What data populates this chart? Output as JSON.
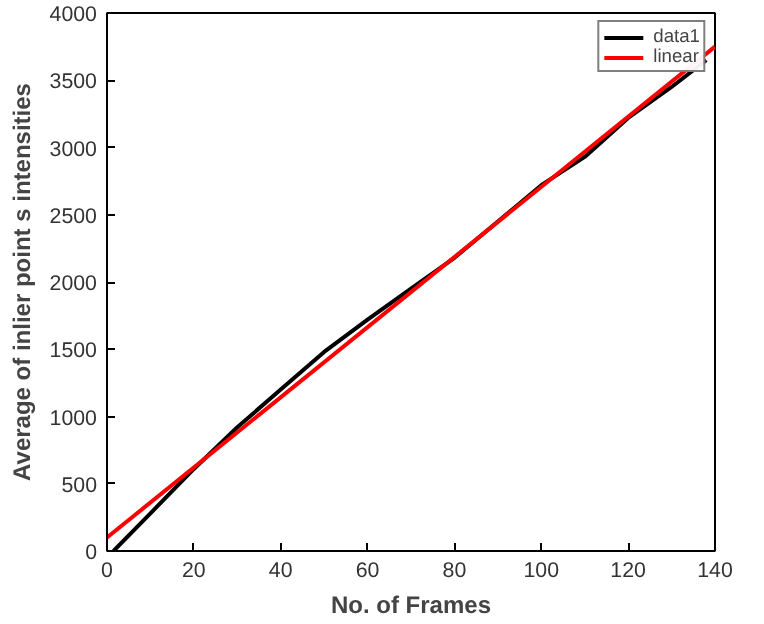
{
  "chart_data": {
    "type": "line",
    "xlabel": "No. of Frames",
    "ylabel": "Average of inlier point s intensities",
    "xlim": [
      0,
      140
    ],
    "ylim": [
      0,
      4000
    ],
    "xticks": [
      0,
      20,
      40,
      60,
      80,
      100,
      120,
      140
    ],
    "yticks": [
      0,
      500,
      1000,
      1500,
      2000,
      2500,
      3000,
      3500,
      4000
    ],
    "grid": false,
    "legend": "top right",
    "line_style": "solid",
    "series": [
      {
        "name": "data1",
        "color": "#000000",
        "x": [
          1.5,
          10,
          20,
          30,
          40,
          50,
          60,
          70,
          80,
          90,
          100,
          110,
          120,
          130,
          138
        ],
        "values": [
          0,
          280,
          610,
          920,
          1200,
          1480,
          1720,
          1950,
          2180,
          2450,
          2720,
          2930,
          3220,
          3450,
          3650
        ]
      },
      {
        "name": "linear",
        "color": "#ff0000",
        "x": [
          0,
          140
        ],
        "values": [
          100,
          3750
        ]
      }
    ]
  }
}
